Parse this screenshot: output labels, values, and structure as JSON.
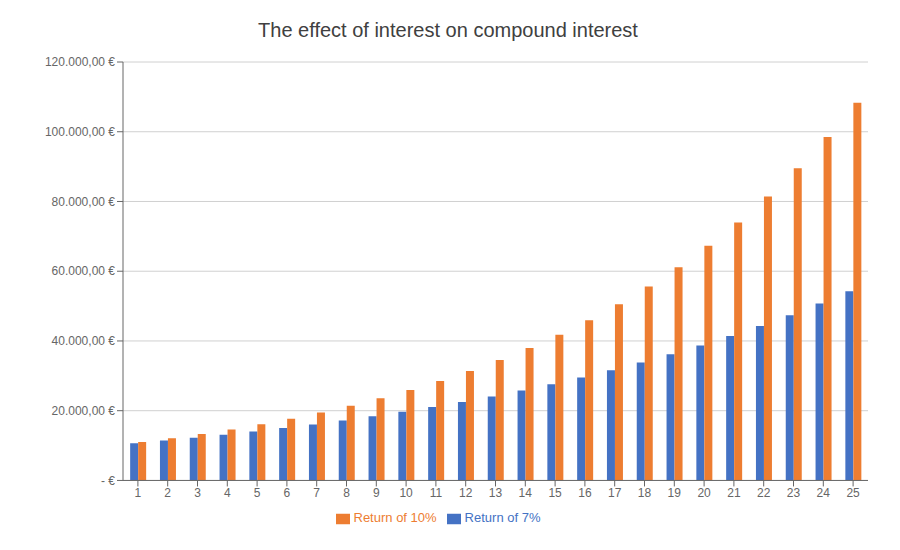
{
  "chart_data": {
    "type": "bar",
    "title": "The effect of interest on compound interest",
    "categories": [
      "1",
      "2",
      "3",
      "4",
      "5",
      "6",
      "7",
      "8",
      "9",
      "10",
      "11",
      "12",
      "13",
      "14",
      "15",
      "16",
      "17",
      "18",
      "19",
      "20",
      "21",
      "22",
      "23",
      "24",
      "25"
    ],
    "series": [
      {
        "name": "Return of 7%",
        "color": "#4472C4",
        "values": [
          10700.0,
          11449.0,
          12250.43,
          13107.96,
          14025.52,
          15007.3,
          16057.81,
          17181.86,
          18384.59,
          19671.51,
          21048.52,
          22521.92,
          24098.45,
          25785.34,
          27590.32,
          29521.64,
          31588.15,
          33799.32,
          36165.28,
          38696.85,
          41406.62,
          44304.08,
          47405.37,
          50723.74,
          54274.4
        ]
      },
      {
        "name": "Return of 10%",
        "color": "#ED7D31",
        "values": [
          11000.0,
          12100.0,
          13310.0,
          14641.0,
          16105.1,
          17715.61,
          19487.17,
          21435.89,
          23579.48,
          25937.42,
          28531.17,
          31384.28,
          34522.71,
          37974.98,
          41772.48,
          45949.73,
          50544.7,
          55599.17,
          61159.09,
          67275.0,
          74002.5,
          81402.75,
          89543.03,
          98497.33,
          108347.06
        ]
      }
    ],
    "ylim": [
      0,
      120000
    ],
    "yticks": [
      {
        "value": 0,
        "label": "-  €"
      },
      {
        "value": 20000,
        "label": "20.000,00 €"
      },
      {
        "value": 40000,
        "label": "40.000,00 €"
      },
      {
        "value": 60000,
        "label": "60.000,00 €"
      },
      {
        "value": 80000,
        "label": "80.000,00 €"
      },
      {
        "value": 100000,
        "label": "100.000,00 €"
      },
      {
        "value": 120000,
        "label": "120.000,00 €"
      }
    ],
    "grid": true,
    "legend": "bottom"
  }
}
